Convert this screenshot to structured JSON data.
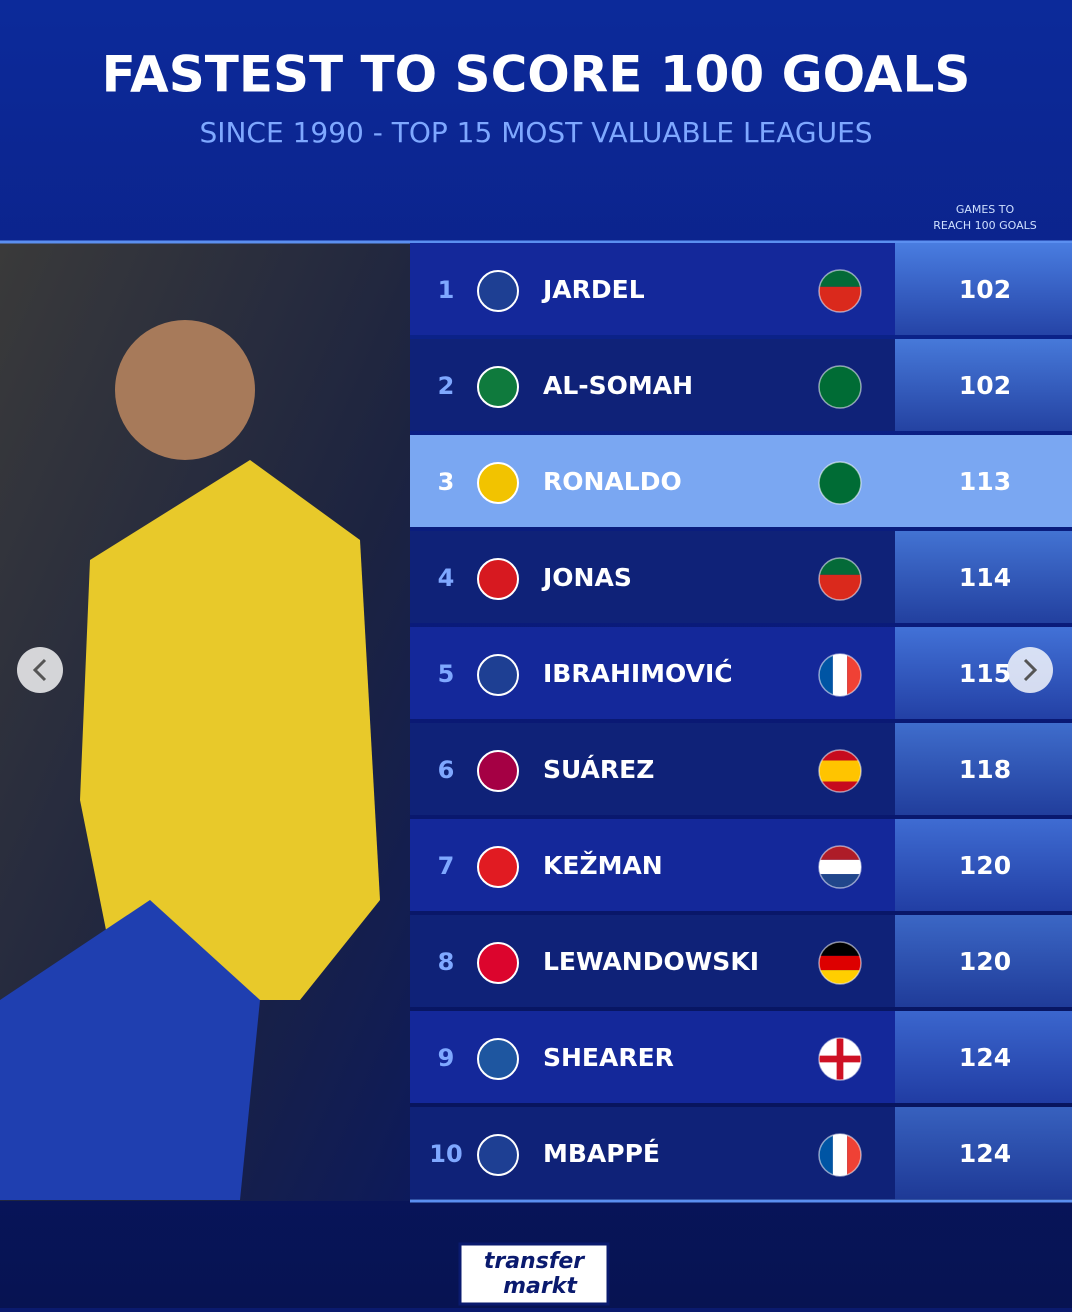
{
  "header": {
    "title": "FASTEST TO SCORE 100 GOALS",
    "subtitle": "SINCE 1990 - TOP 15 MOST VALUABLE LEAGUES"
  },
  "table": {
    "column_header": [
      "GAMES TO",
      "REACH 100 GOALS"
    ],
    "rows": [
      [
        "1",
        "JARDEL",
        "102"
      ],
      [
        "2",
        "AL-SOMAH",
        "102"
      ],
      [
        "3",
        "RONALDO",
        "113"
      ],
      [
        "4",
        "JONAS",
        "114"
      ],
      [
        "5",
        "IBRAHIMOVIĆ",
        "115"
      ],
      [
        "6",
        "SUÁREZ",
        "118"
      ],
      [
        "7",
        "KEŽMAN",
        "120"
      ],
      [
        "8",
        "LEWANDOWSKI",
        "120"
      ],
      [
        "9",
        "SHEARER",
        "124"
      ],
      [
        "10",
        "MBAPPÉ",
        "124"
      ]
    ]
  },
  "logo": [
    "transfer",
    "markt"
  ]
}
